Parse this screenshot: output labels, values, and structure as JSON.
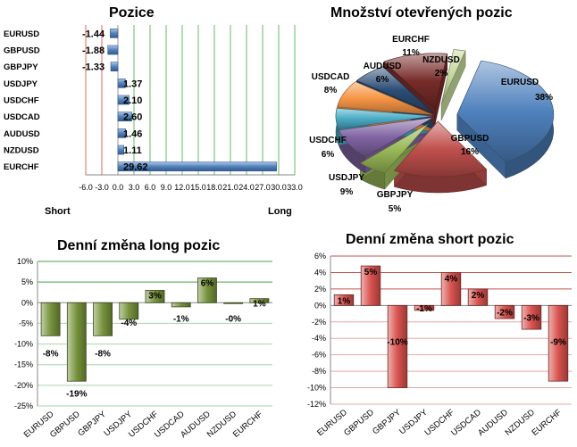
{
  "chart_data": [
    {
      "type": "bar",
      "orientation": "horizontal",
      "title": "Pozice",
      "categories": [
        "EURUSD",
        "GBPUSD",
        "GBPJPY",
        "USDJPY",
        "USDCHF",
        "USDCAD",
        "AUDUSD",
        "NZDUSD",
        "EURCHF"
      ],
      "values": [
        -1.44,
        -1.88,
        -1.33,
        1.37,
        2.1,
        2.6,
        1.46,
        1.11,
        29.62
      ],
      "value_labels": [
        "-1.44",
        "-1.88",
        "-1.33",
        "1.37",
        "2.10",
        "2.60",
        "1.46",
        "1.11",
        "29.62"
      ],
      "xlim": [
        -6.0,
        33.0
      ],
      "xticks": [
        -6,
        -3,
        0,
        3,
        6,
        9,
        12,
        15,
        18,
        21,
        24,
        27,
        30,
        33
      ],
      "xtick_labels": [
        "-6.0",
        "-3.0",
        "0.0",
        "3.0",
        "6.0",
        "9.0",
        "12.0",
        "15.0",
        "18.0",
        "21.0",
        "24.0",
        "27.0",
        "30.0",
        "33.0"
      ],
      "left_label": "Short",
      "right_label": "Long",
      "colors": {
        "bar": "#4f81bd",
        "short_grid": "#e06666",
        "long_grid": "#66bb66"
      }
    },
    {
      "type": "pie",
      "title": "Množství otevřených pozic",
      "slices": [
        {
          "name": "EURUSD",
          "percent": 38,
          "label": "38%",
          "color": "#4f81bd"
        },
        {
          "name": "GBPUSD",
          "percent": 16,
          "label": "16%",
          "color": "#c0504d"
        },
        {
          "name": "GBPJPY",
          "percent": 5,
          "label": "5%",
          "color": "#9bbb59"
        },
        {
          "name": "USDJPY",
          "percent": 9,
          "label": "9%",
          "color": "#8064a2"
        },
        {
          "name": "USDCHF",
          "percent": 6,
          "label": "6%",
          "color": "#4bacc6"
        },
        {
          "name": "USDCAD",
          "percent": 8,
          "label": "8%",
          "color": "#f79646"
        },
        {
          "name": "AUDUSD",
          "percent": 6,
          "label": "6%",
          "color": "#2c4d75"
        },
        {
          "name": "EURCHF",
          "percent": 11,
          "label": "11%",
          "color": "#772c2a"
        },
        {
          "name": "NZDUSD",
          "percent": 2,
          "label": "2%",
          "color": "#c3d69b"
        }
      ]
    },
    {
      "type": "bar",
      "title": "Denní změna long pozic",
      "categories": [
        "EURUSD",
        "GBPUSD",
        "GBPJPY",
        "USDJPY",
        "USDCHF",
        "USDCAD",
        "AUDUSD",
        "NZDUSD",
        "EURCHF"
      ],
      "values": [
        -8,
        -19,
        -8,
        -4,
        3,
        -1,
        6,
        -0.2,
        1
      ],
      "value_labels": [
        "-8%",
        "-19%",
        "-8%",
        "-4%",
        "3%",
        "-1%",
        "6%",
        "-0%",
        "1%"
      ],
      "ylim": [
        -25,
        10
      ],
      "yticks": [
        -25,
        -20,
        -15,
        -10,
        -5,
        0,
        5,
        10
      ],
      "ytick_labels": [
        "-25%",
        "-20%",
        "-15%",
        "-10%",
        "-5%",
        "0%",
        "5%",
        "10%"
      ],
      "colors": {
        "bar": "#77933c",
        "grid": "#4a9e4a"
      }
    },
    {
      "type": "bar",
      "title": "Denní změna short pozic",
      "categories": [
        "EURUSD",
        "GBPUSD",
        "GBPJPY",
        "USDJPY",
        "USDCHF",
        "USDCAD",
        "AUDUSD",
        "NZDUSD",
        "EURCHF"
      ],
      "values": [
        1.3,
        4.8,
        -10,
        -0.6,
        4,
        2,
        -1.6,
        -2.9,
        -9.2
      ],
      "value_labels": [
        "1%",
        "5%",
        "-10%",
        "-1%",
        "4%",
        "2%",
        "-2%",
        "-3%",
        "-9%"
      ],
      "ylim": [
        -12,
        6
      ],
      "yticks": [
        -12,
        -10,
        -8,
        -6,
        -4,
        -2,
        0,
        2,
        4,
        6
      ],
      "ytick_labels": [
        "-12%",
        "-10%",
        "-8%",
        "-6%",
        "-4%",
        "-2%",
        "0%",
        "2%",
        "4%",
        "6%"
      ],
      "colors": {
        "bar": "#d9534f",
        "grid": "#c0504d"
      }
    }
  ]
}
